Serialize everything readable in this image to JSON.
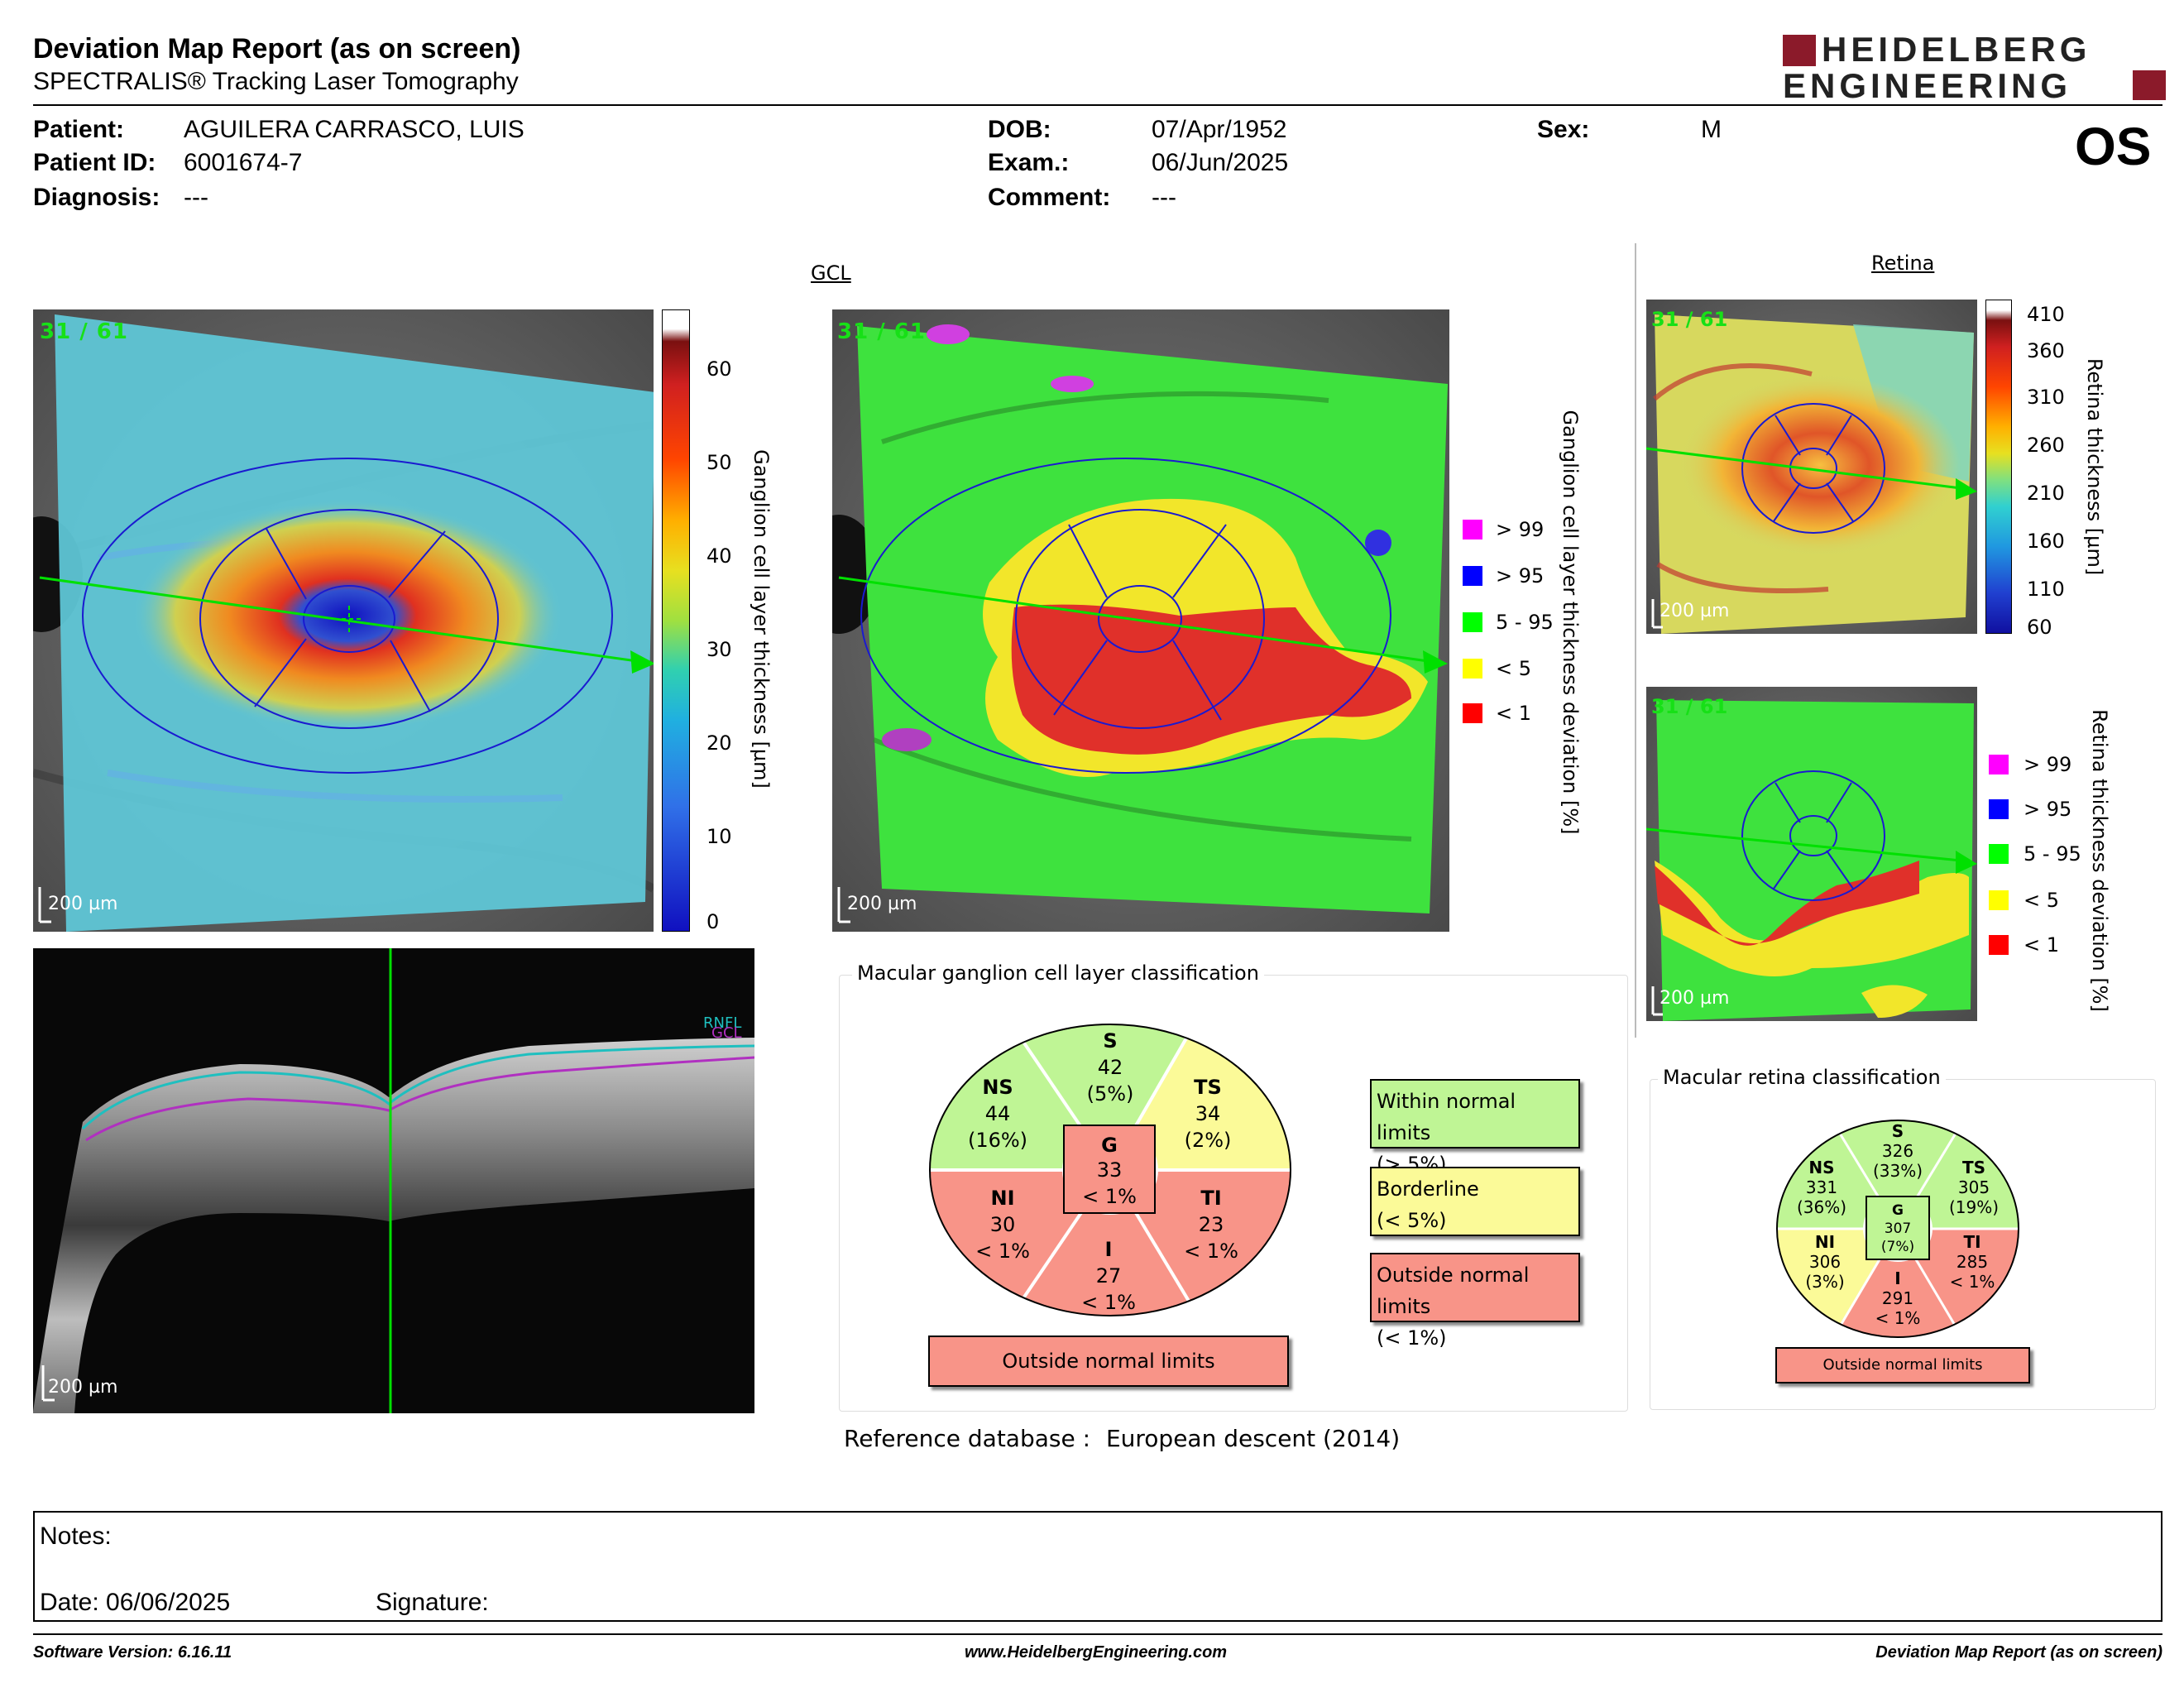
{
  "header": {
    "title": "Deviation Map Report (as on screen)",
    "subtitle": "SPECTRALIS® Tracking Laser Tomography",
    "logo_line1": "HEIDELBERG",
    "logo_line2": "ENGINEERING"
  },
  "patient": {
    "patient_label": "Patient:",
    "patient_value": "AGUILERA CARRASCO, LUIS",
    "id_label": "Patient ID:",
    "id_value": "6001674-7",
    "diag_label": "Diagnosis:",
    "diag_value": "---",
    "dob_label": "DOB:",
    "dob_value": "07/Apr/1952",
    "exam_label": "Exam.:",
    "exam_value": "06/Jun/2025",
    "comment_label": "Comment:",
    "comment_value": "---",
    "sex_label": "Sex:",
    "sex_value": "M",
    "eye": "OS"
  },
  "gcl": {
    "section_title": "GCL",
    "frame_label": "31 / 61",
    "scale_label": "200 µm",
    "colorbar_ticks": [
      "60",
      "50",
      "40",
      "30",
      "20",
      "10",
      "0"
    ],
    "colorbar_label": "Ganglion cell layer thickness [µm]",
    "deviation_label": "Ganglion cell layer thickness deviation [%]",
    "legend": [
      {
        "label": "> 99",
        "color": "#ff00ff"
      },
      {
        "label": "> 95",
        "color": "#0000ff"
      },
      {
        "label": "5 - 95",
        "color": "#00ff00"
      },
      {
        "label": "< 5",
        "color": "#ffff00"
      },
      {
        "label": "< 1",
        "color": "#ff0000"
      }
    ]
  },
  "bscan": {
    "scale_label": "200 µm",
    "rnfl": "RNFL",
    "gcl": "GCL"
  },
  "retina": {
    "section_title": "Retina",
    "frame_label": "31 / 61",
    "scale_label": "200 µm",
    "colorbar_ticks": [
      "410",
      "360",
      "310",
      "260",
      "210",
      "160",
      "110",
      "60"
    ],
    "colorbar_label": "Retina thickness [µm]",
    "deviation_label": "Retina thickness deviation [%]",
    "legend": [
      {
        "label": "> 99",
        "color": "#ff00ff"
      },
      {
        "label": "> 95",
        "color": "#0000ff"
      },
      {
        "label": "5 - 95",
        "color": "#00ff00"
      },
      {
        "label": "< 5",
        "color": "#ffff00"
      },
      {
        "label": "< 1",
        "color": "#ff0000"
      }
    ]
  },
  "gcl_classification": {
    "title": "Macular ganglion cell layer classification",
    "S": {
      "name": "S",
      "value": "42",
      "pct": "(5%)"
    },
    "NS": {
      "name": "NS",
      "value": "44",
      "pct": "(16%)"
    },
    "TS": {
      "name": "TS",
      "value": "34",
      "pct": "(2%)"
    },
    "G": {
      "name": "G",
      "value": "33",
      "pct": "< 1%"
    },
    "NI": {
      "name": "NI",
      "value": "30",
      "pct": "< 1%"
    },
    "TI": {
      "name": "TI",
      "value": "23",
      "pct": "< 1%"
    },
    "I": {
      "name": "I",
      "value": "27",
      "pct": "< 1%"
    },
    "result": "Outside normal limits",
    "key": [
      {
        "line1": "Within normal limits",
        "line2": "(> 5%)",
        "color": "#bff595"
      },
      {
        "line1": "Borderline",
        "line2": "(< 5%)",
        "color": "#fbfa98"
      },
      {
        "line1": "Outside normal limits",
        "line2": "(< 1%)",
        "color": "#f89488"
      }
    ],
    "colors": {
      "green": "#bff595",
      "yellow": "#fbfa98",
      "red": "#f89488"
    }
  },
  "retina_classification": {
    "title": "Macular retina classification",
    "S": {
      "name": "S",
      "value": "326",
      "pct": "(33%)"
    },
    "NS": {
      "name": "NS",
      "value": "331",
      "pct": "(36%)"
    },
    "TS": {
      "name": "TS",
      "value": "305",
      "pct": "(19%)"
    },
    "G": {
      "name": "G",
      "value": "307",
      "pct": "(7%)"
    },
    "NI": {
      "name": "NI",
      "value": "306",
      "pct": "(3%)"
    },
    "TI": {
      "name": "TI",
      "value": "285",
      "pct": "< 1%"
    },
    "I": {
      "name": "I",
      "value": "291",
      "pct": "< 1%"
    },
    "result": "Outside normal limits"
  },
  "reference": {
    "label": "Reference database :",
    "value": "European descent (2014)"
  },
  "notes": {
    "notes_label": "Notes:",
    "date_label": "Date: 06/06/2025",
    "signature_label": "Signature:"
  },
  "footer": {
    "software": "Software Version: 6.16.11",
    "website": "www.HeidelbergEngineering.com",
    "report": "Deviation Map Report (as on screen)"
  }
}
